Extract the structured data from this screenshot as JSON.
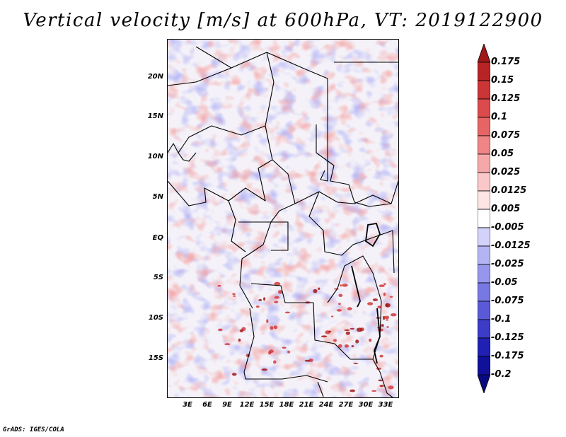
{
  "title": "Vertical velocity [m/s] at 600hPa, VT: 2019122900",
  "credit": "GrADS: IGES/COLA",
  "map": {
    "variable": "Vertical velocity",
    "units": "m/s",
    "level": "600hPa",
    "valid_time": "2019122900",
    "lat_range": [
      -19.5,
      24.5
    ],
    "lon_range": [
      0,
      35
    ],
    "lat_ticks": [
      "20N",
      "15N",
      "10N",
      "5N",
      "EQ",
      "5S",
      "10S",
      "15S"
    ],
    "lat_tick_values": [
      20,
      15,
      10,
      5,
      0,
      -5,
      -10,
      -15
    ],
    "lon_ticks": [
      "3E",
      "6E",
      "9E",
      "12E",
      "15E",
      "18E",
      "21E",
      "24E",
      "27E",
      "30E",
      "33E"
    ],
    "lon_tick_values": [
      3,
      6,
      9,
      12,
      15,
      18,
      21,
      24,
      27,
      30,
      33
    ]
  },
  "colorbar": {
    "labels": [
      "0.175",
      "0.15",
      "0.125",
      "0.1",
      "0.075",
      "0.05",
      "0.025",
      "0.0125",
      "0.005",
      "-0.005",
      "-0.0125",
      "-0.025",
      "-0.05",
      "-0.075",
      "-0.1",
      "-0.125",
      "-0.175",
      "-0.2"
    ],
    "colors": [
      "#a01818",
      "#b82424",
      "#cc3535",
      "#dc4b4b",
      "#e66464",
      "#ef8585",
      "#f5a8a8",
      "#fac8c8",
      "#fde5e5",
      "#ffffff",
      "#d2d2fb",
      "#b4b4f5",
      "#9696ec",
      "#7878e2",
      "#5a5ad8",
      "#3c3cc8",
      "#2020b4",
      "#10109a",
      "#0a0a80"
    ]
  }
}
